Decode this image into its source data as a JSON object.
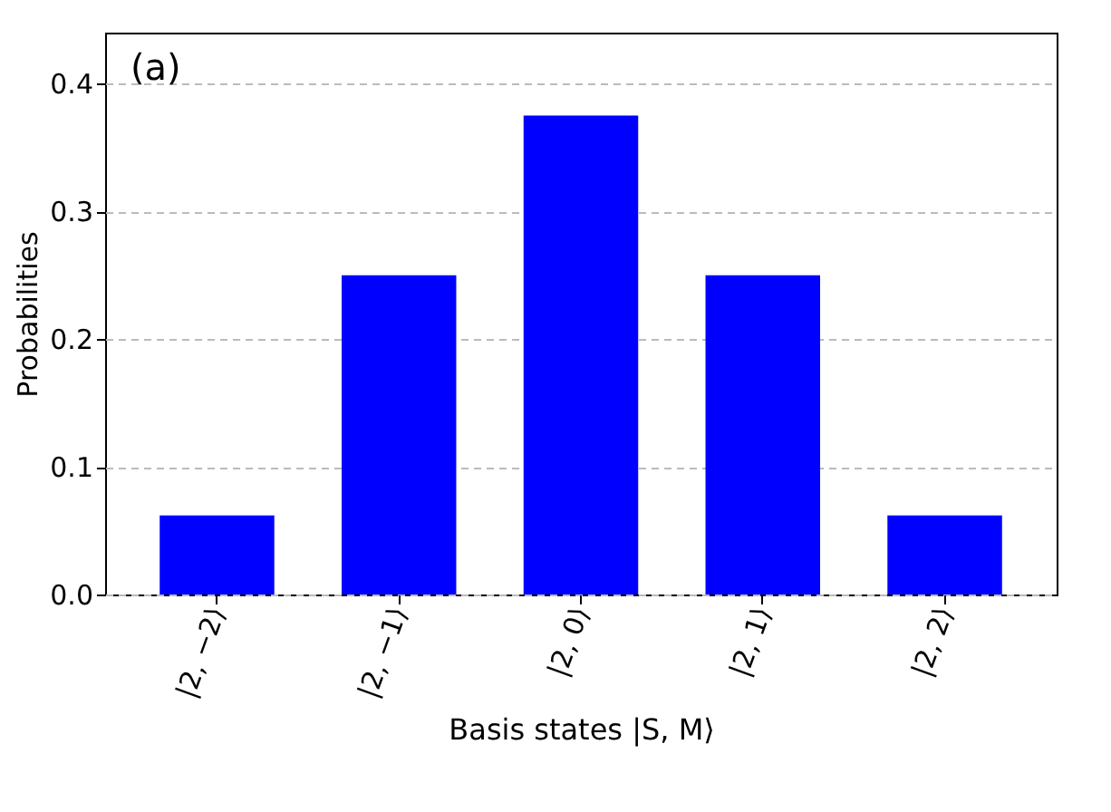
{
  "chart_data": {
    "type": "bar",
    "xlabel": "Basis states |S, M⟩",
    "ylabel": "Probabilities",
    "categories": [
      "|2, −2⟩",
      "|2, −1⟩",
      "|2, 0⟩",
      "|2, 1⟩",
      "|2, 2⟩"
    ],
    "values": [
      0.062,
      0.25,
      0.375,
      0.25,
      0.062
    ],
    "color": "#0000ff",
    "ylim": [
      0,
      0.44
    ],
    "yticks": [
      {
        "value": 0,
        "label": "0.0"
      },
      0.1,
      0.2,
      0.3,
      0.4
    ],
    "grid": "y",
    "annotations": [
      "(a)"
    ]
  }
}
